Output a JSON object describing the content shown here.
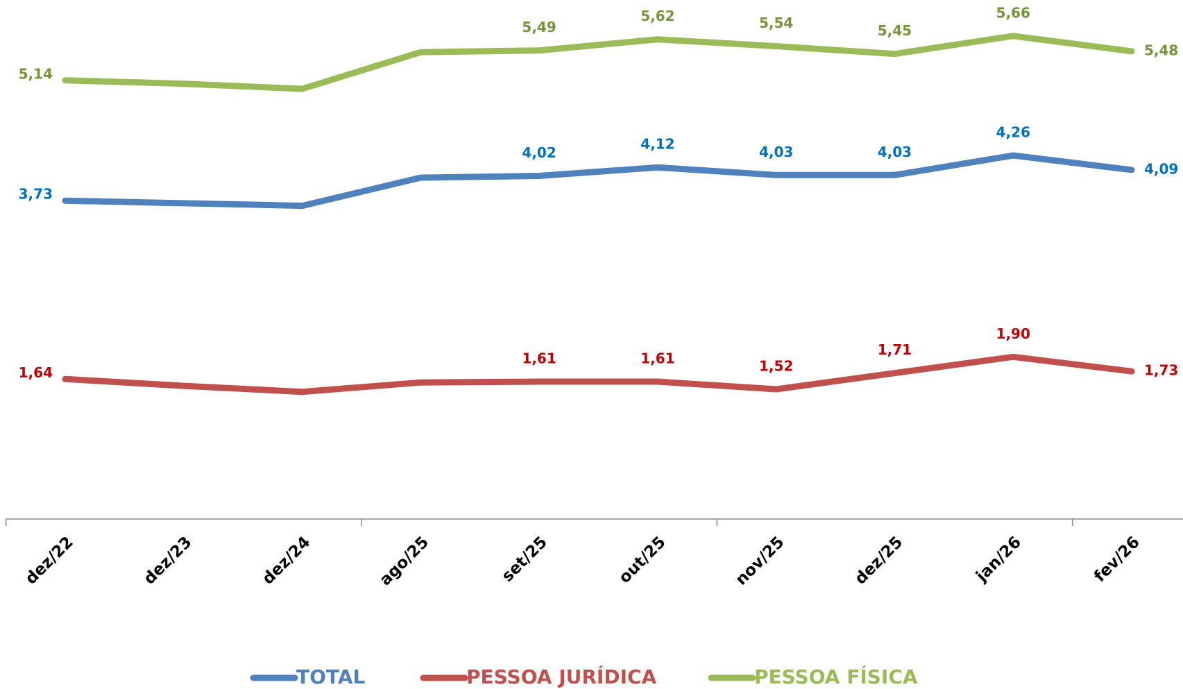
{
  "chart_data": {
    "type": "line",
    "categories": [
      "dez/22",
      "dez/23",
      "dez/24",
      "ago/25",
      "set/25",
      "out/25",
      "nov/25",
      "dez/25",
      "jan/26",
      "fev/26"
    ],
    "series": [
      {
        "name": "TOTAL",
        "color": "#4f81bd",
        "label_color": "#0070c0",
        "values": [
          3.73,
          3.7,
          3.67,
          4.0,
          4.02,
          4.12,
          4.03,
          4.03,
          4.26,
          4.09
        ],
        "value_labels": [
          "3,73",
          null,
          null,
          null,
          "4,02",
          "4,12",
          "4,03",
          "4,03",
          "4,26",
          "4,09"
        ]
      },
      {
        "name": "PESSOA JURÍDICA",
        "color": "#c0504d",
        "label_color": "#c00000",
        "values": [
          1.64,
          1.56,
          1.49,
          1.6,
          1.61,
          1.61,
          1.52,
          1.71,
          1.9,
          1.73
        ],
        "value_labels": [
          "1,64",
          null,
          null,
          null,
          "1,61",
          "1,61",
          "1,52",
          "1,71",
          "1,90",
          "1,73"
        ]
      },
      {
        "name": "PESSOA FÍSICA",
        "color": "#9bbb59",
        "label_color": "#77933c",
        "values": [
          5.14,
          5.1,
          5.04,
          5.47,
          5.49,
          5.62,
          5.54,
          5.45,
          5.66,
          5.48
        ],
        "value_labels": [
          "5,14",
          null,
          null,
          null,
          "5,49",
          "5,62",
          "5,54",
          "5,45",
          "5,66",
          "5,48"
        ]
      }
    ],
    "ylim": [
      0,
      6
    ],
    "legend": "bottom"
  }
}
